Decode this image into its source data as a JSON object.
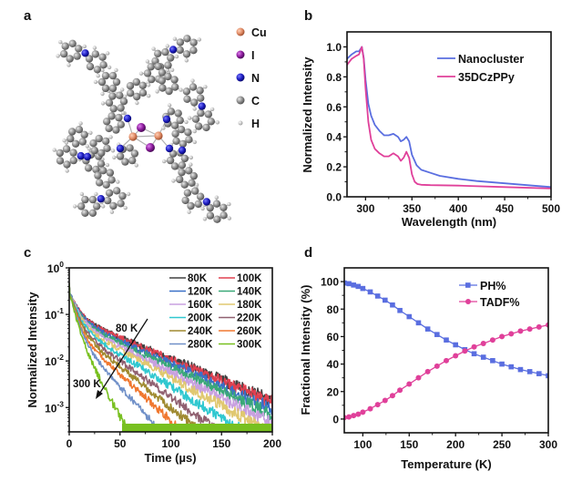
{
  "panels": {
    "a": {
      "label": "a",
      "title": "Molecular structure of the Cu2I2 nanocluster",
      "legend": [
        {
          "symbol": "Cu",
          "color": "#e08a64"
        },
        {
          "symbol": "I",
          "color": "#8a1a9a"
        },
        {
          "symbol": "N",
          "color": "#1c1cc0"
        },
        {
          "symbol": "C",
          "color": "#8c8c8c"
        },
        {
          "symbol": "H",
          "color": "#b8b8b8"
        }
      ]
    },
    "b": {
      "label": "b"
    },
    "c": {
      "label": "c",
      "arrow_start_label": "80 K",
      "arrow_end_label": "300 K"
    },
    "d": {
      "label": "d"
    }
  },
  "chart_data": [
    {
      "panel": "b",
      "type": "line",
      "title": "",
      "xlabel": "Wavelength (nm)",
      "ylabel": "Normalized Intensity",
      "xlim": [
        280,
        500
      ],
      "ylim": [
        0,
        1.1
      ],
      "xticks": [
        300,
        350,
        400,
        450,
        500
      ],
      "yticks": [
        0.0,
        0.2,
        0.4,
        0.6,
        0.8,
        1.0
      ],
      "ytick_labels": [
        "0.0",
        "0.2",
        "0.4",
        "0.6",
        "0.8",
        "1.0"
      ],
      "legend_position": "top-right",
      "series": [
        {
          "name": "Nanocluster",
          "color": "#5a6ee0",
          "x": [
            280,
            285,
            290,
            293,
            296,
            298,
            300,
            303,
            306,
            310,
            315,
            320,
            325,
            330,
            335,
            338,
            341,
            344,
            347,
            350,
            355,
            360,
            370,
            380,
            400,
            420,
            450,
            480,
            500
          ],
          "y": [
            0.92,
            0.95,
            0.97,
            0.97,
            1.0,
            0.93,
            0.78,
            0.62,
            0.54,
            0.48,
            0.44,
            0.41,
            0.41,
            0.42,
            0.4,
            0.37,
            0.38,
            0.4,
            0.37,
            0.28,
            0.21,
            0.18,
            0.16,
            0.14,
            0.12,
            0.105,
            0.09,
            0.075,
            0.065
          ]
        },
        {
          "name": "35DCzPPy",
          "color": "#e0409a",
          "x": [
            280,
            285,
            290,
            293,
            296,
            298,
            300,
            303,
            306,
            310,
            315,
            320,
            325,
            330,
            335,
            338,
            341,
            344,
            347,
            350,
            353,
            356,
            360,
            370,
            400,
            450,
            500
          ],
          "y": [
            0.88,
            0.92,
            0.94,
            0.95,
            1.0,
            0.92,
            0.72,
            0.5,
            0.38,
            0.32,
            0.29,
            0.27,
            0.27,
            0.29,
            0.27,
            0.24,
            0.26,
            0.3,
            0.26,
            0.15,
            0.1,
            0.085,
            0.08,
            0.078,
            0.075,
            0.065,
            0.055
          ]
        }
      ]
    },
    {
      "panel": "c",
      "type": "line",
      "title": "",
      "xlabel": "Time (µs)",
      "ylabel": "Normalized Intensity",
      "yscale": "log",
      "xlim": [
        0,
        200
      ],
      "ylim": [
        0.0003,
        1
      ],
      "xticks": [
        0,
        50,
        100,
        150,
        200
      ],
      "yticks": [
        1,
        0.1,
        0.01,
        0.001
      ],
      "ytick_labels": [
        [
          "10",
          "0"
        ],
        [
          "10",
          "-1"
        ],
        [
          "10",
          "-2"
        ],
        [
          "10",
          "-3"
        ]
      ],
      "legend_position": "top-right",
      "legend_columns": 2,
      "series": [
        {
          "name": "80K",
          "color": "#404040",
          "tau_fast": 7,
          "tau_slow": 48,
          "a_slow": 0.09
        },
        {
          "name": "100K",
          "color": "#e04050",
          "tau_fast": 7,
          "tau_slow": 47,
          "a_slow": 0.09
        },
        {
          "name": "120K",
          "color": "#3a70c8",
          "tau_fast": 7,
          "tau_slow": 44,
          "a_slow": 0.085
        },
        {
          "name": "140K",
          "color": "#3aa878",
          "tau_fast": 6.5,
          "tau_slow": 42,
          "a_slow": 0.08
        },
        {
          "name": "160K",
          "color": "#c8a0e0",
          "tau_fast": 6.5,
          "tau_slow": 39,
          "a_slow": 0.075
        },
        {
          "name": "180K",
          "color": "#e0c870",
          "tau_fast": 6,
          "tau_slow": 36,
          "a_slow": 0.07
        },
        {
          "name": "200K",
          "color": "#30c8d0",
          "tau_fast": 6,
          "tau_slow": 32,
          "a_slow": 0.065
        },
        {
          "name": "220K",
          "color": "#906070",
          "tau_fast": 5.5,
          "tau_slow": 28,
          "a_slow": 0.06
        },
        {
          "name": "240K",
          "color": "#a08a30",
          "tau_fast": 5.5,
          "tau_slow": 25,
          "a_slow": 0.055
        },
        {
          "name": "260K",
          "color": "#f07830",
          "tau_fast": 5,
          "tau_slow": 22,
          "a_slow": 0.05
        },
        {
          "name": "280K",
          "color": "#7090c8",
          "tau_fast": 5,
          "tau_slow": 18,
          "a_slow": 0.045
        },
        {
          "name": "300K",
          "color": "#78c020",
          "tau_fast": 4.5,
          "tau_slow": 11,
          "a_slow": 0.06
        }
      ],
      "annotations": [
        {
          "text": "80 K",
          "type": "arrow-start"
        },
        {
          "text": "300 K",
          "type": "arrow-end"
        }
      ]
    },
    {
      "panel": "d",
      "type": "line",
      "title": "",
      "xlabel": "Temperature (K)",
      "ylabel": "Fractional Intensity (%)",
      "xlim": [
        80,
        300
      ],
      "ylim": [
        -10,
        110
      ],
      "xticks": [
        100,
        150,
        200,
        250,
        300
      ],
      "yticks": [
        0,
        20,
        40,
        60,
        80,
        100
      ],
      "legend_position": "top-right",
      "x": [
        80,
        85,
        90,
        95,
        100,
        108,
        116,
        124,
        132,
        140,
        150,
        160,
        170,
        180,
        190,
        200,
        210,
        220,
        230,
        240,
        250,
        260,
        270,
        280,
        290,
        300
      ],
      "series": [
        {
          "name": "PH%",
          "color": "#5a6ee0",
          "marker": "square",
          "values": [
            99,
            98.5,
            97.5,
            96.5,
            95,
            92.5,
            89.5,
            86.5,
            83,
            79,
            74.5,
            70,
            65.5,
            61.5,
            57.5,
            54,
            50.5,
            47.5,
            45,
            42.5,
            40,
            38,
            36,
            34.5,
            33,
            31.5
          ]
        },
        {
          "name": "TADF%",
          "color": "#e0409a",
          "marker": "circle",
          "values": [
            1,
            1.5,
            2.5,
            3.5,
            5,
            7.5,
            10.5,
            13.5,
            17,
            21,
            25.5,
            30,
            34.5,
            38.5,
            42.5,
            46,
            49.5,
            52.5,
            55,
            57.5,
            60,
            62,
            64,
            65.5,
            67,
            68.5
          ]
        }
      ]
    }
  ]
}
